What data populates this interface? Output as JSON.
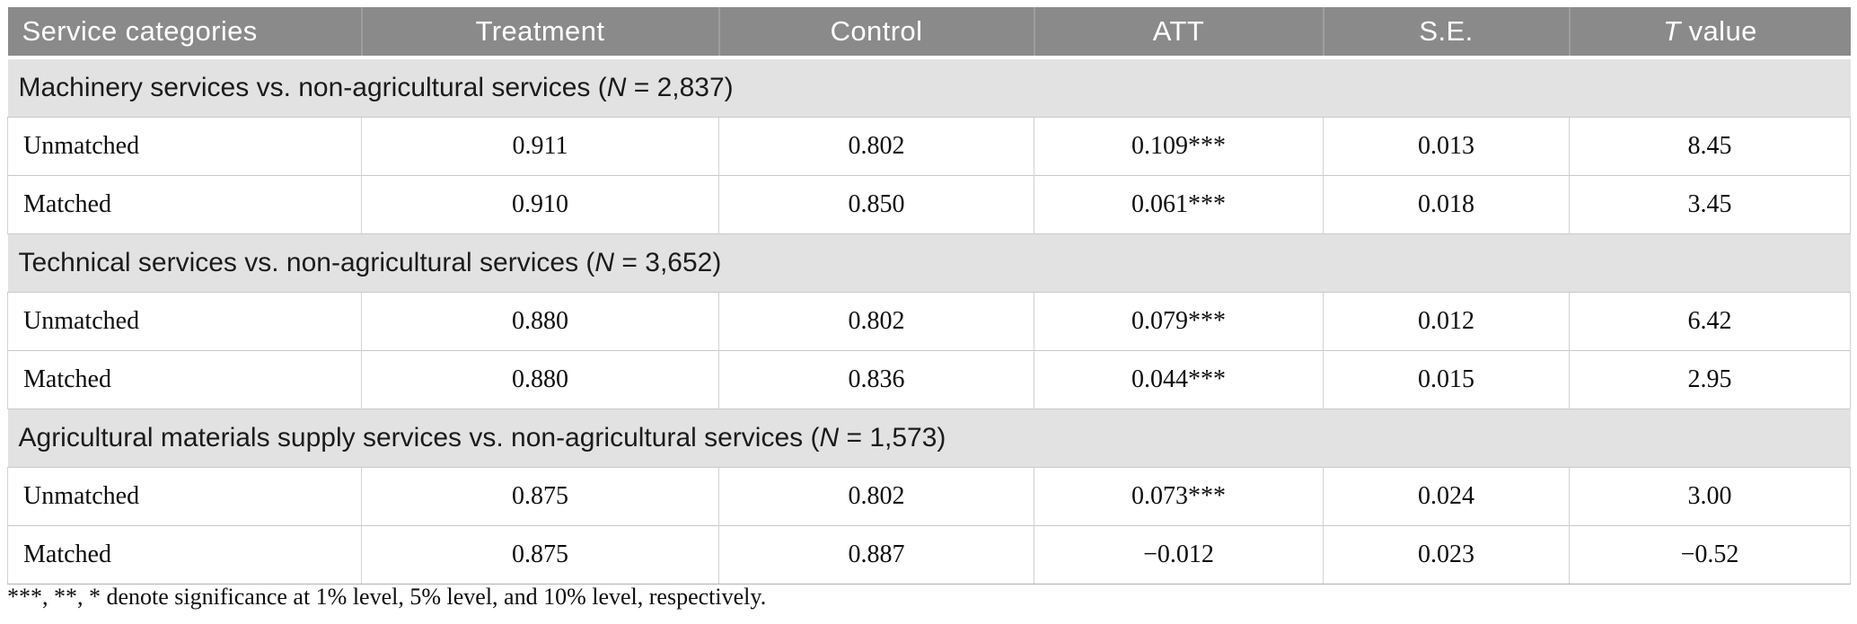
{
  "table": {
    "header": {
      "col1": "Service categories",
      "col2": "Treatment",
      "col3": "Control",
      "col4": "ATT",
      "col5": "S.E.",
      "col6_italic": "T",
      "col6_rest": " value"
    },
    "sections": [
      {
        "title_pre": "Machinery services vs. non-agricultural services (",
        "title_n": "N",
        "title_post": " = 2,837)",
        "rows": [
          {
            "label": "Unmatched",
            "treatment": "0.911",
            "control": "0.802",
            "att": "0.109***",
            "se": "0.013",
            "t_value": "8.45"
          },
          {
            "label": "Matched",
            "treatment": "0.910",
            "control": "0.850",
            "att": "0.061***",
            "se": "0.018",
            "t_value": "3.45"
          }
        ]
      },
      {
        "title_pre": "Technical services vs. non-agricultural services (",
        "title_n": "N",
        "title_post": " = 3,652)",
        "rows": [
          {
            "label": "Unmatched",
            "treatment": "0.880",
            "control": "0.802",
            "att": "0.079***",
            "se": "0.012",
            "t_value": "6.42"
          },
          {
            "label": "Matched",
            "treatment": "0.880",
            "control": "0.836",
            "att": "0.044***",
            "se": "0.015",
            "t_value": "2.95"
          }
        ]
      },
      {
        "title_pre": "Agricultural materials supply services vs. non-agricultural services (",
        "title_n": "N",
        "title_post": " = 1,573)",
        "rows": [
          {
            "label": "Unmatched",
            "treatment": "0.875",
            "control": "0.802",
            "att": "0.073***",
            "se": "0.024",
            "t_value": "3.00"
          },
          {
            "label": "Matched",
            "treatment": "0.875",
            "control": "0.887",
            "att": "−0.012",
            "se": "0.023",
            "t_value": "−0.52"
          }
        ]
      }
    ],
    "footnote": "***, **, * denote significance at 1% level, 5% level, and 10% level, respectively.",
    "colors": {
      "header_bg": "#8a8a8a",
      "header_text": "#ffffff",
      "section_bg": "#e3e2e2",
      "row_bg": "#ffffff",
      "grid_line": "#c9c9c9"
    }
  }
}
